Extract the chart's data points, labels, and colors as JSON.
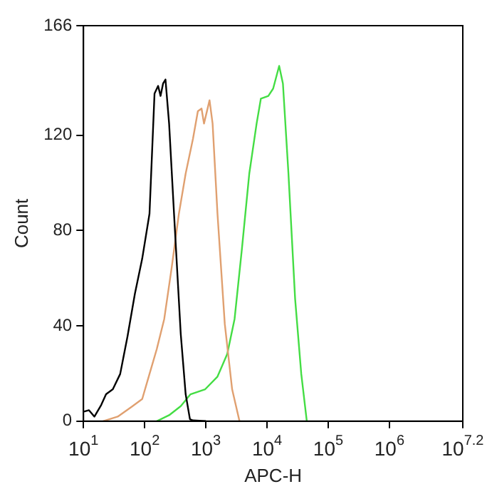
{
  "chart_data": {
    "type": "line",
    "xlabel": "APC-H",
    "ylabel": "Count",
    "log": "x",
    "grid": false,
    "legend": false,
    "marker": "none",
    "line_style": "solid",
    "xlim": [
      10,
      15848932
    ],
    "xticks": [
      {
        "value": 10,
        "label": "10$^{1}$"
      },
      {
        "value": 100,
        "label": "10$^{2}$"
      },
      {
        "value": 1000,
        "label": "10$^{3}$"
      },
      {
        "value": 10000,
        "label": "10$^{4}$"
      },
      {
        "value": 100000,
        "label": "10$^{5}$"
      },
      {
        "value": 1000000,
        "label": "10$^{6}$"
      },
      {
        "value": 15848932,
        "label": "10$^{7.2}$"
      }
    ],
    "ylim": [
      0,
      166
    ],
    "yticks": [
      0,
      40,
      80,
      120,
      166
    ],
    "series": [
      {
        "color": "#000000",
        "x": [
          10.2,
          12.3,
          15.1,
          19.5,
          23.4,
          30.2,
          39.8,
          52.5,
          69.2,
          91.2,
          120,
          145,
          166,
          182,
          200,
          219,
          251,
          302,
          389,
          468,
          550,
          617,
          1000
        ],
        "values": [
          4,
          4.6,
          1.9,
          6.8,
          11.3,
          13.4,
          19.8,
          35.6,
          53.4,
          68.2,
          87.1,
          137.5,
          140.7,
          136.5,
          141.7,
          143.4,
          124.9,
          87.1,
          36.6,
          11.3,
          0.8,
          0.3,
          0
        ]
      },
      {
        "color": "#e0a070",
        "x": [
          20.9,
          36.3,
          61.7,
          91.2,
          120,
          158,
          209,
          275,
          363,
          468,
          617,
          741,
          851,
          933,
          1150,
          1290,
          1550,
          2040,
          2690,
          3550
        ],
        "values": [
          0,
          1.9,
          6.1,
          9.3,
          19.8,
          30.3,
          42.9,
          64,
          87.1,
          103.9,
          118.6,
          130.1,
          131.2,
          124.9,
          134.7,
          124.9,
          87.1,
          40.8,
          13.4,
          0
        ]
      },
      {
        "color": "#44dd44",
        "x": [
          158,
          251,
          389,
          562,
          977,
          1550,
          2240,
          2950,
          3890,
          5130,
          6760,
          7940,
          10500,
          12600,
          15800,
          18200,
          22400,
          28800,
          36300,
          44700
        ],
        "values": [
          0,
          2.5,
          6.3,
          11.3,
          13.4,
          18.7,
          28.2,
          42.9,
          72.4,
          103.9,
          124.9,
          135.4,
          136.5,
          139.6,
          149.1,
          141.7,
          103.9,
          51.3,
          19.8,
          0
        ]
      }
    ]
  }
}
